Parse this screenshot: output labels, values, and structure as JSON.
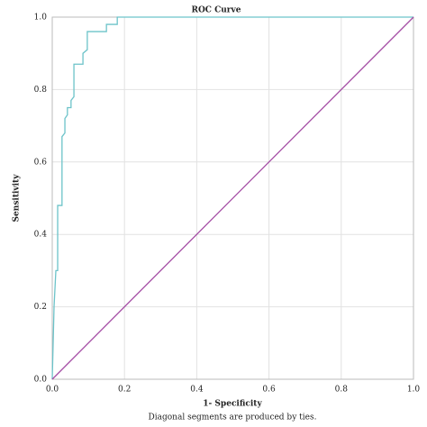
{
  "chart_data": {
    "type": "line",
    "title": "ROC Curve",
    "xlabel": "1- Specificity",
    "ylabel": "Sensitivity",
    "note": "Diagonal segments are produced by ties.",
    "xlim": [
      0,
      1
    ],
    "ylim": [
      0,
      1
    ],
    "xticks": [
      {
        "value": 0,
        "label": "0.0"
      },
      0.2,
      0.4,
      0.6,
      0.8,
      {
        "value": 1,
        "label": "1.0"
      }
    ],
    "yticks": [
      {
        "value": 0,
        "label": "0.0"
      },
      0.2,
      0.4,
      0.6,
      0.8,
      {
        "value": 1,
        "label": "1.0"
      }
    ],
    "grid": true,
    "series": [
      {
        "color": "#6cc3c9",
        "x": [
          0,
          0.005,
          0.01,
          0.015,
          0.015,
          0.027,
          0.027,
          0.035,
          0.035,
          0.042,
          0.042,
          0.052,
          0.052,
          0.06,
          0.06,
          0.085,
          0.085,
          0.097,
          0.097,
          0.15,
          0.15,
          0.18,
          0.18,
          1
        ],
        "values": [
          0,
          0.2,
          0.3,
          0.3,
          0.48,
          0.48,
          0.67,
          0.68,
          0.72,
          0.73,
          0.75,
          0.75,
          0.77,
          0.78,
          0.87,
          0.87,
          0.9,
          0.91,
          0.96,
          0.96,
          0.98,
          0.98,
          1,
          1
        ]
      },
      {
        "color": "#a54ea5",
        "x": [
          0,
          1
        ],
        "values": [
          0,
          1
        ]
      }
    ]
  }
}
